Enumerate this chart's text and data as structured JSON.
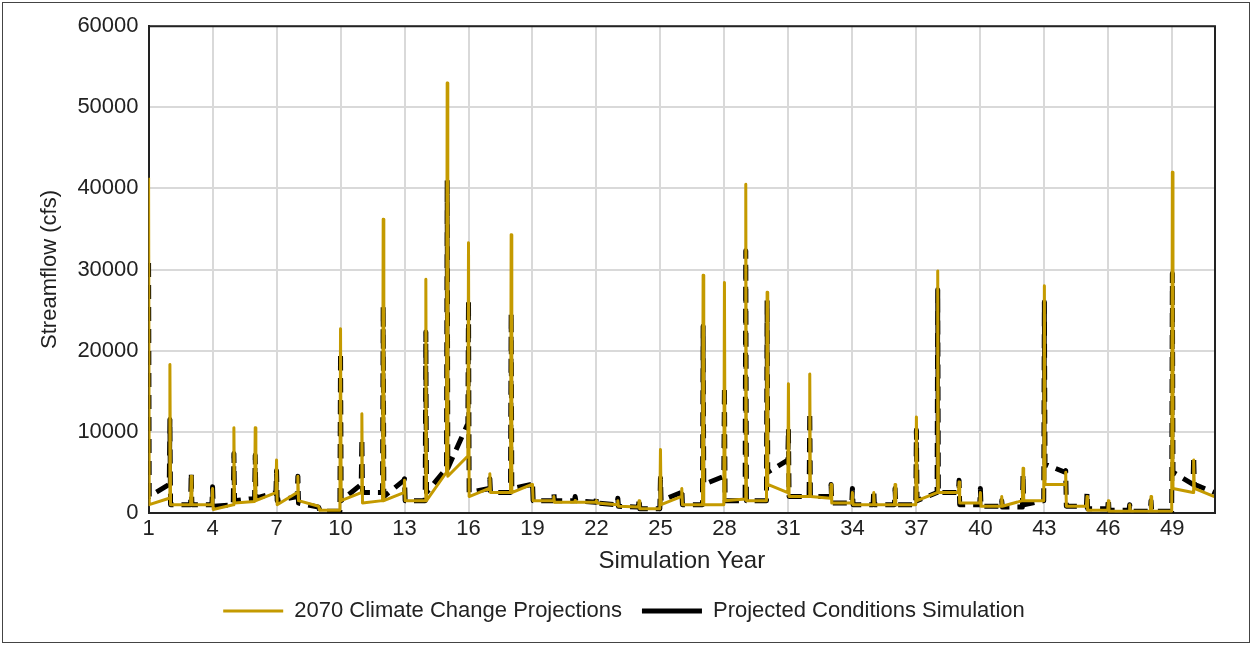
{
  "chart_data": {
    "type": "line",
    "xlabel": "Simulation Year",
    "ylabel": "Streamflow (cfs)",
    "x": [
      1,
      1.03,
      1.97,
      2,
      2.03,
      2.97,
      3,
      3.03,
      3.97,
      4,
      4.03,
      4.97,
      5,
      5.03,
      5.97,
      6,
      6.03,
      6.97,
      7,
      7.03,
      7.97,
      8,
      8.03,
      8.97,
      9,
      9.03,
      9.97,
      10,
      10.03,
      10.97,
      11,
      11.03,
      11.97,
      12,
      12.03,
      12.97,
      13,
      13.03,
      13.97,
      14,
      14.03,
      14.97,
      15,
      15.03,
      15.97,
      16,
      16.03,
      16.97,
      17,
      17.03,
      17.97,
      18,
      18.03,
      18.97,
      19,
      19.03,
      19.97,
      20,
      20.03,
      20.97,
      21,
      21.03,
      21.97,
      22,
      22.03,
      22.97,
      23,
      23.03,
      23.97,
      24,
      24.03,
      24.97,
      25,
      25.03,
      25.97,
      26,
      26.03,
      26.97,
      27,
      27.03,
      27.97,
      28,
      28.03,
      28.97,
      29,
      29.03,
      29.97,
      30,
      30.03,
      30.97,
      31,
      31.03,
      31.97,
      32,
      32.03,
      32.97,
      33,
      33.03,
      33.97,
      34,
      34.03,
      34.97,
      35,
      35.03,
      35.97,
      36,
      36.03,
      36.97,
      37,
      37.03,
      37.97,
      38,
      38.03,
      38.97,
      39,
      39.03,
      39.97,
      40,
      40.03,
      40.97,
      41,
      41.03,
      41.97,
      42,
      42.03,
      42.97,
      43,
      43.03,
      43.97,
      44,
      44.03,
      44.97,
      45,
      45.03,
      45.97,
      46,
      46.03,
      46.97,
      47,
      47.03,
      47.97,
      48,
      48.03,
      48.97,
      49,
      49.03,
      49.97,
      50,
      50.03,
      50.97
    ],
    "series": [
      {
        "name": "2070 Climate Change Projections",
        "color": "#c49a00",
        "line_style": "solid",
        "values": [
          41300,
          1000,
          1800,
          18300,
          1000,
          1000,
          4500,
          1000,
          1000,
          3000,
          400,
          1000,
          10500,
          1200,
          1400,
          10500,
          1500,
          2500,
          6500,
          1000,
          2500,
          4500,
          1500,
          800,
          500,
          300,
          300,
          22700,
          1500,
          2500,
          12200,
          1200,
          1500,
          36200,
          1500,
          2500,
          4000,
          1500,
          1500,
          28800,
          1500,
          5000,
          53000,
          4500,
          7000,
          33300,
          2000,
          3000,
          4800,
          2500,
          2500,
          34300,
          2500,
          3500,
          3500,
          1500,
          1500,
          2000,
          1300,
          1300,
          1500,
          1300,
          1300,
          1500,
          1200,
          1000,
          1500,
          800,
          700,
          1500,
          500,
          500,
          7800,
          1000,
          2000,
          3000,
          1000,
          1000,
          29300,
          1000,
          1000,
          28400,
          1500,
          1700,
          40500,
          1500,
          1500,
          27200,
          3500,
          2500,
          15900,
          2000,
          2000,
          17100,
          2000,
          1800,
          3500,
          1200,
          1200,
          2500,
          1000,
          1000,
          2500,
          1000,
          1000,
          3500,
          1000,
          1000,
          11800,
          1500,
          2500,
          29800,
          2500,
          2500,
          3800,
          1200,
          1200,
          2500,
          800,
          800,
          2000,
          800,
          1500,
          5500,
          1500,
          1500,
          28000,
          3500,
          3500,
          5000,
          800,
          800,
          2000,
          300,
          300,
          1500,
          200,
          200,
          1000,
          200,
          200,
          2000,
          200,
          200,
          42000,
          3000,
          2500,
          6500,
          3000,
          2000
        ]
      },
      {
        "name": "Projected Conditions Simulation",
        "color": "#000000",
        "line_style": "dashed",
        "values": [
          30800,
          2000,
          3500,
          11500,
          1000,
          1000,
          5000,
          1000,
          1000,
          3200,
          800,
          1000,
          7300,
          1500,
          1800,
          7100,
          1800,
          2500,
          5200,
          1500,
          2000,
          4500,
          1200,
          700,
          500,
          200,
          200,
          19800,
          1500,
          3500,
          9200,
          2500,
          2500,
          25500,
          2000,
          4000,
          4200,
          1500,
          1500,
          22300,
          2500,
          5500,
          41000,
          5500,
          11000,
          26200,
          2500,
          3000,
          4200,
          2500,
          2500,
          24700,
          3000,
          3500,
          3800,
          1500,
          1500,
          2500,
          1500,
          1500,
          2000,
          1500,
          1300,
          1800,
          1200,
          1000,
          1800,
          800,
          700,
          1800,
          500,
          500,
          4300,
          1500,
          2500,
          3000,
          1000,
          1000,
          23000,
          3500,
          4500,
          15600,
          1500,
          1500,
          32300,
          1500,
          1500,
          26200,
          5000,
          6500,
          10400,
          2000,
          2000,
          12400,
          2000,
          2000,
          3500,
          1200,
          1200,
          3000,
          1000,
          1000,
          2800,
          1000,
          1000,
          3000,
          1000,
          1000,
          10200,
          1500,
          2500,
          27500,
          2500,
          2500,
          4000,
          1000,
          1000,
          3000,
          800,
          800,
          1500,
          700,
          700,
          4800,
          1000,
          1500,
          26000,
          6000,
          5000,
          5200,
          800,
          800,
          2500,
          500,
          500,
          1800,
          300,
          300,
          1000,
          200,
          200,
          1500,
          200,
          200,
          29500,
          5000,
          3500,
          7000,
          3500,
          2500
        ]
      }
    ],
    "xlim": [
      1,
      51
    ],
    "xticks": [
      1,
      4,
      7,
      10,
      13,
      16,
      19,
      22,
      25,
      28,
      31,
      34,
      37,
      40,
      43,
      46,
      49
    ],
    "ylim": [
      0,
      60000
    ],
    "yticks": [
      0,
      10000,
      20000,
      30000,
      40000,
      50000,
      60000
    ],
    "grid": true,
    "legend": "bottom",
    "marker": "none"
  }
}
